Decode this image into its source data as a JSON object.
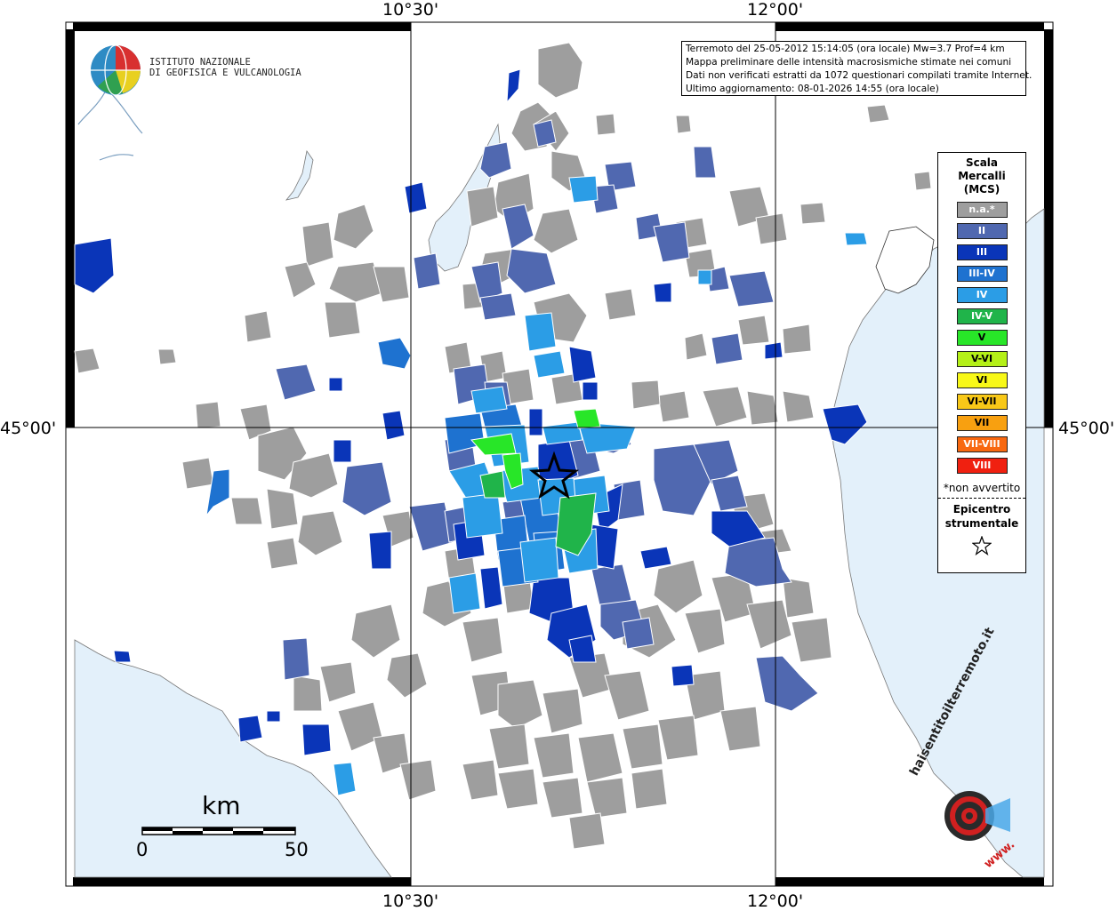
{
  "map": {
    "coords": {
      "top_left": "10°30'",
      "top_right": "12°00'",
      "bottom_left": "10°30'",
      "bottom_right": "12°00'",
      "left_mid": "45°00'",
      "right_mid": "45°00'"
    },
    "info": {
      "line1": "Terremoto del 25-05-2012 15:14:05 (ora locale) Mw=3.7 Prof=4 km",
      "line2": "Mappa preliminare delle intensità macrosismiche stimate nei comuni",
      "line3": "Dati non verificati estratti da 1072 questionari compilati tramite Internet.",
      "line4": "Ultimo aggiornamento: 08-01-2026 14:55 (ora locale)"
    },
    "logo": {
      "line1": "ISTITUTO NAZIONALE",
      "line2": "DI GEOFISICA E VULCANOLOGIA"
    },
    "scalebar": {
      "unit": "km",
      "start": "0",
      "end": "50"
    },
    "brand": {
      "text": "haisentitoilterremoto.it",
      "prefix": "www."
    },
    "legend": {
      "title_1": "Scala",
      "title_2": "Mercalli",
      "title_3": "(MCS)",
      "items": [
        {
          "label": "n.a.*",
          "color": "#9e9e9e",
          "text_color": "#ffffff"
        },
        {
          "label": "II",
          "color": "#5068b0",
          "text_color": "#ffffff"
        },
        {
          "label": "III",
          "color": "#0a35b8",
          "text_color": "#ffffff"
        },
        {
          "label": "III-IV",
          "color": "#1e72d0",
          "text_color": "#ffffff"
        },
        {
          "label": "IV",
          "color": "#2b9de6",
          "text_color": "#ffffff"
        },
        {
          "label": "IV-V",
          "color": "#20b44a",
          "text_color": "#ffffff"
        },
        {
          "label": "V",
          "color": "#28e628",
          "text_color": "#000000"
        },
        {
          "label": "V-VI",
          "color": "#b4f018",
          "text_color": "#000000"
        },
        {
          "label": "VI",
          "color": "#f8f818",
          "text_color": "#000000"
        },
        {
          "label": "VI-VII",
          "color": "#f8c818",
          "text_color": "#000000"
        },
        {
          "label": "VII",
          "color": "#f8a010",
          "text_color": "#000000"
        },
        {
          "label": "VII-VIII",
          "color": "#f86810",
          "text_color": "#ffffff"
        },
        {
          "label": "VIII",
          "color": "#f02010",
          "text_color": "#ffffff"
        }
      ],
      "note": "*non avvertito",
      "epicentre_1": "Epicentro",
      "epicentre_2": "strumentale"
    },
    "colors": {
      "sea": "#e3f0fa",
      "lake": "#e3f0fa",
      "land": "#ffffff",
      "na": "#9e9e9e",
      "II": "#5068b0",
      "III": "#0a35b8",
      "III_IV": "#1e72d0",
      "IV": "#2b9de6",
      "IV_V": "#20b44a",
      "V": "#28e628"
    }
  }
}
